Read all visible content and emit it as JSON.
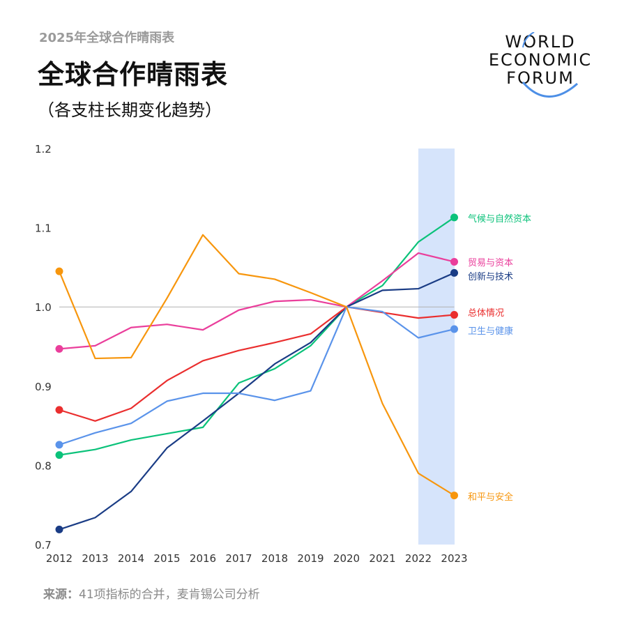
{
  "header": {
    "kicker": "2025年全球合作晴雨表",
    "title": "全球合作晴雨表",
    "subtitle": "（各支柱长期变化趋势）"
  },
  "logo": {
    "lines": [
      "WORLD",
      "ECONOMIC",
      "FORUM"
    ],
    "icon": "wef-arc-logo"
  },
  "source": {
    "label": "来源：",
    "text": "41项指标的合并，麦肯锡公司分析"
  },
  "chart_data": {
    "type": "line",
    "x": [
      "2012",
      "2013",
      "2014",
      "2015",
      "2016",
      "2017",
      "2018",
      "2019",
      "2020",
      "2021",
      "2022",
      "2023"
    ],
    "ylim": [
      0.7,
      1.2
    ],
    "yticks": [
      "0.7",
      "0.8",
      "0.9",
      "1.0",
      "1.1",
      "1.2"
    ],
    "reference_line": 1.0,
    "highlight_band": [
      "2022",
      "2023"
    ],
    "grid": false,
    "legend": "inline-right",
    "series": [
      {
        "name": "气候与自然资本",
        "color": "#0bc27a",
        "values": [
          0.813,
          0.82,
          0.832,
          0.84,
          0.848,
          0.904,
          0.922,
          0.951,
          1.0,
          1.027,
          1.082,
          1.113
        ]
      },
      {
        "name": "贸易与资本",
        "color": "#ea3e9b",
        "values": [
          0.947,
          0.951,
          0.974,
          0.978,
          0.971,
          0.996,
          1.007,
          1.009,
          1.0,
          1.033,
          1.068,
          1.057
        ]
      },
      {
        "name": "创新与技术",
        "color": "#1a3c85",
        "values": [
          0.719,
          0.734,
          0.767,
          0.822,
          0.856,
          0.891,
          0.928,
          0.955,
          1.0,
          1.021,
          1.023,
          1.043
        ]
      },
      {
        "name": "总体情况",
        "color": "#ea2e2e",
        "values": [
          0.87,
          0.856,
          0.872,
          0.907,
          0.932,
          0.945,
          0.955,
          0.966,
          1.0,
          0.993,
          0.986,
          0.99
        ]
      },
      {
        "name": "卫生与健康",
        "color": "#5a93ea",
        "values": [
          0.826,
          0.841,
          0.853,
          0.881,
          0.891,
          0.891,
          0.882,
          0.894,
          1.0,
          0.994,
          0.961,
          0.972
        ]
      },
      {
        "name": "和平与安全",
        "color": "#f7960d",
        "values": [
          1.045,
          0.935,
          0.936,
          1.011,
          1.091,
          1.042,
          1.035,
          1.018,
          1.0,
          0.878,
          0.79,
          0.762
        ]
      }
    ]
  }
}
